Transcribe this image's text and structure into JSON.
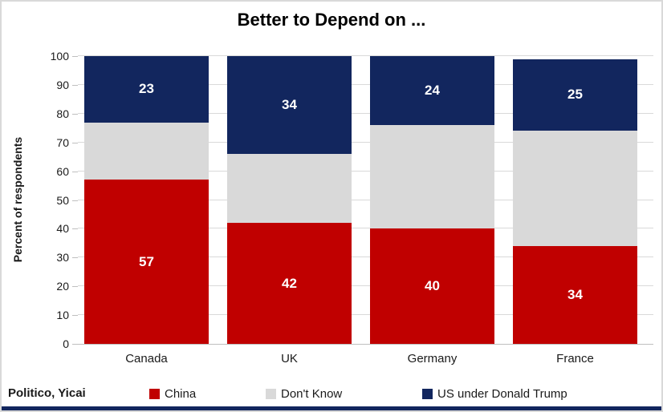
{
  "title": "Better to Depend on ...",
  "source": "Politico, Yicai",
  "y_axis": {
    "label": "Percent of respondents",
    "ticks": [
      0,
      10,
      20,
      30,
      40,
      50,
      60,
      70,
      80,
      90,
      100
    ]
  },
  "chart_data": {
    "type": "bar",
    "stacked": true,
    "title": "Better to Depend on ...",
    "xlabel": "",
    "ylabel": "Percent of respondents",
    "ylim": [
      0,
      100
    ],
    "grid": true,
    "legend_position": "bottom",
    "categories": [
      "Canada",
      "UK",
      "Germany",
      "France"
    ],
    "series": [
      {
        "name": "China",
        "color": "#c00000",
        "values": [
          57,
          42,
          40,
          34
        ],
        "show_labels": true
      },
      {
        "name": "Don't Know",
        "color": "#d9d9d9",
        "values": [
          20,
          24,
          36,
          40
        ],
        "show_labels": false
      },
      {
        "name": "US under Donald Trump",
        "color": "#12265e",
        "values": [
          23,
          34,
          24,
          25
        ],
        "show_labels": true
      }
    ]
  },
  "legend": {
    "items": [
      {
        "label": "China",
        "color": "#c00000"
      },
      {
        "label": "Don't Know",
        "color": "#d9d9d9"
      },
      {
        "label": "US under Donald Trump",
        "color": "#12265e"
      }
    ]
  },
  "colors": {
    "china": "#c00000",
    "dont_know": "#d9d9d9",
    "us_trump": "#12265e",
    "gridline": "#d9d9d9",
    "axis_line": "#bfbfbf",
    "frame_border": "#d9d9d9",
    "bottom_strip": "#12265e"
  }
}
